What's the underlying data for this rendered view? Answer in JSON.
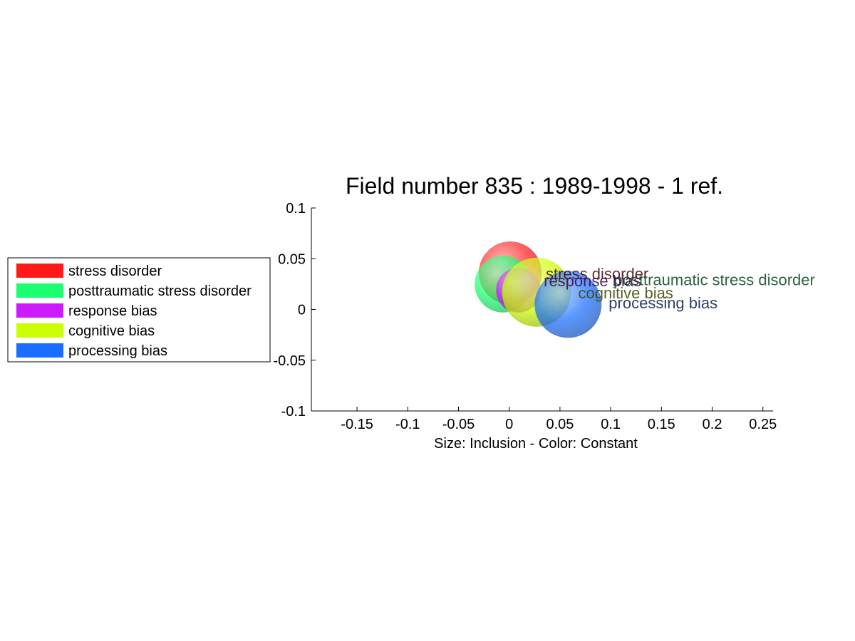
{
  "chart_data": {
    "type": "scatter",
    "title": "Field number 835 : 1989-1998  - 1 ref.",
    "xlabel": "Size: Inclusion - Color: Constant",
    "ylabel": "",
    "xlim": [
      -0.195,
      0.26
    ],
    "ylim": [
      -0.1,
      0.1
    ],
    "xticks": [
      -0.15,
      -0.1,
      -0.05,
      0,
      0.05,
      0.1,
      0.15,
      0.2,
      0.25
    ],
    "xtick_labels": [
      "-0.15",
      "-0.1",
      "-0.05",
      "0",
      "0.05",
      "0.1",
      "0.15",
      "0.2",
      "0.25"
    ],
    "yticks": [
      -0.1,
      -0.05,
      0,
      0.05,
      0.1
    ],
    "ytick_labels": [
      "-0.1",
      "-0.05",
      "0",
      "0.05",
      "0.1"
    ],
    "grid": false,
    "legend_position": "left",
    "series": [
      {
        "name": "stress disorder",
        "x": 0.001,
        "y": 0.036,
        "size": 0.031,
        "color": "#ff1a1a",
        "label_x": 0.036,
        "label_y": 0.034
      },
      {
        "name": "posttraumatic stress disorder",
        "x": -0.006,
        "y": 0.025,
        "size": 0.028,
        "color": "#1aff6e",
        "label_x": 0.103,
        "label_y": 0.028
      },
      {
        "name": "response bias",
        "x": 0.009,
        "y": 0.019,
        "size": 0.022,
        "color": "#cc1aff",
        "label_x": 0.034,
        "label_y": 0.027
      },
      {
        "name": "cognitive bias",
        "x": 0.027,
        "y": 0.017,
        "size": 0.034,
        "color": "#ccff00",
        "label_x": 0.068,
        "label_y": 0.015
      },
      {
        "name": "processing bias",
        "x": 0.058,
        "y": 0.005,
        "size": 0.033,
        "color": "#1a6eff",
        "label_x": 0.098,
        "label_y": 0.005
      }
    ]
  }
}
